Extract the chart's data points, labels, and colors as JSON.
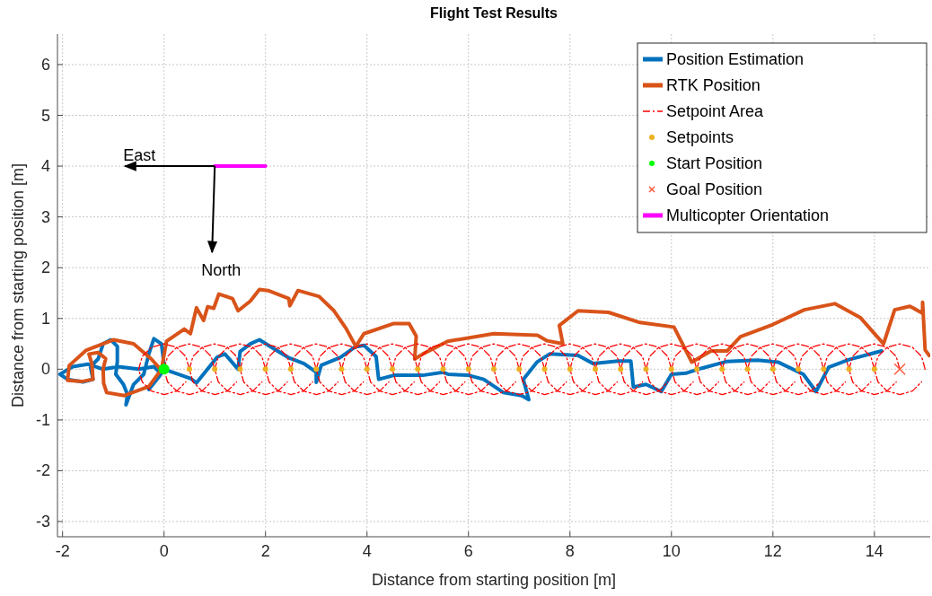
{
  "chart_data": {
    "type": "line",
    "title": "Flight Test Results",
    "xlabel": "Distance from starting position [m]",
    "ylabel": "Distance from starting position [m]",
    "xlim": [
      -2.1,
      15.1
    ],
    "ylim": [
      -3.3,
      6.6
    ],
    "xticks": [
      -2,
      0,
      2,
      4,
      6,
      8,
      10,
      12,
      14
    ],
    "yticks": [
      -3,
      -2,
      -1,
      0,
      1,
      2,
      3,
      4,
      5,
      6
    ],
    "grid": true,
    "legend": "top right",
    "annotations": [
      "East",
      "North"
    ],
    "series": [
      {
        "name": "Position Estimation",
        "color": "#0072bd",
        "x": [
          -0.1,
          -0.2,
          -0.5,
          -0.9,
          -1.2,
          -1.5,
          -1.8,
          -2.05,
          -1.9,
          -1.6,
          -1.4,
          -1.45,
          -1.3,
          -1.2,
          -1.05,
          -0.92,
          -0.92,
          -0.95,
          -0.8,
          -0.72,
          -0.75,
          -0.6,
          -0.4,
          -0.3,
          -0.2,
          -0.05,
          0,
          -0.15,
          -0.3,
          -0.1,
          0,
          0.52,
          0.64,
          1.05,
          1.2,
          1.46,
          1.5,
          1.7,
          1.88,
          2.17,
          2.45,
          2.76,
          3,
          3,
          3.1,
          3.47,
          3.77,
          3.94,
          4.18,
          4.23,
          4.53,
          5.1,
          5.5,
          5.6,
          6,
          6.3,
          6.69,
          7.05,
          7.19,
          7.08,
          7.35,
          7.6,
          8.16,
          8.46,
          8.95,
          9.2,
          9.25,
          9.5,
          9.8,
          10,
          10.28,
          10.6,
          11.08,
          11.7,
          12.1,
          12.6,
          12.85,
          13.1,
          13.5,
          14.14
        ],
        "values": [
          -0.05,
          0.05,
          0,
          0.05,
          0,
          0.1,
          0.05,
          -0.1,
          -0.2,
          -0.25,
          -0.2,
          0.05,
          0.2,
          0.5,
          0.58,
          0.45,
          0.15,
          -0.1,
          -0.3,
          -0.5,
          -0.7,
          -0.3,
          -0.1,
          0.3,
          0.6,
          0.5,
          0.1,
          -0.2,
          -0.4,
          -0.15,
          0,
          -0.18,
          -0.27,
          0.24,
          0.3,
          0,
          0.35,
          0.5,
          0.58,
          0.4,
          0.23,
          0.11,
          -0.06,
          -0.26,
          0.08,
          0.23,
          0.44,
          0.47,
          0.25,
          -0.2,
          -0.12,
          -0.12,
          -0.06,
          -0.1,
          -0.12,
          -0.2,
          -0.46,
          -0.52,
          -0.6,
          -0.2,
          0.14,
          0.3,
          0.27,
          0.11,
          0.16,
          0.16,
          -0.35,
          -0.3,
          -0.44,
          -0.1,
          -0.08,
          0.02,
          0.15,
          0.18,
          0.14,
          -0.1,
          -0.44,
          0.04,
          0.19,
          0.36
        ]
      },
      {
        "name": "RTK Position",
        "color": "#d95319",
        "x": [
          -0.07,
          -0.25,
          -0.6,
          -1,
          -1.54,
          -1.87,
          -1.9,
          -1.6,
          -1.4,
          -1.42,
          -1.48,
          -1.3,
          -1.15,
          -1.2,
          -1.19,
          -1.13,
          -0.78,
          -0.3,
          -0.05,
          0.05,
          0.4,
          0.52,
          0.64,
          0.78,
          0.86,
          0.98,
          1.08,
          1.35,
          1.46,
          1.7,
          1.88,
          2.05,
          2.46,
          2.48,
          2.64,
          3.06,
          3.35,
          3.59,
          3.78,
          3.94,
          4.53,
          4.83,
          4.97,
          4.94,
          5.1,
          5.59,
          6.5,
          7.36,
          7.55,
          7.86,
          7.79,
          8.16,
          8.76,
          9.38,
          10.05,
          10.4,
          10.78,
          11.1,
          11.36,
          12,
          12.62,
          13.22,
          13.72,
          14.18,
          14.4,
          14.7,
          14.95,
          14.95,
          15,
          15.08
        ],
        "values": [
          0,
          0.2,
          0.5,
          0.58,
          0.37,
          0.07,
          -0.22,
          -0.24,
          -0.2,
          0.1,
          0.3,
          0.33,
          0.21,
          0,
          -0.28,
          -0.46,
          -0.52,
          -0.34,
          0,
          0.55,
          0.79,
          0.7,
          1.21,
          0.96,
          1.23,
          1.2,
          1.48,
          1.39,
          1.15,
          1.34,
          1.57,
          1.55,
          1.39,
          1.25,
          1.55,
          1.43,
          1.15,
          0.8,
          0.45,
          0.7,
          0.9,
          0.9,
          0.65,
          0.2,
          0.3,
          0.55,
          0.7,
          0.67,
          0.56,
          0.5,
          0.86,
          1.15,
          1.12,
          0.92,
          0.83,
          0.14,
          0.36,
          0.36,
          0.64,
          0.88,
          1.17,
          1.29,
          1.02,
          0.5,
          1.17,
          1.24,
          1.1,
          1.32,
          0.38,
          0.27
        ]
      },
      {
        "name": "Setpoint Area",
        "color": "#ff0000",
        "line_style": "dashed",
        "x": [
          0.5,
          0.43,
          0.25,
          0,
          -0.25,
          -0.43,
          -0.5,
          -0.43,
          -0.25,
          0,
          0.25,
          0.43,
          null,
          1,
          0.93,
          0.75,
          0.5,
          0.25,
          0.07,
          0,
          0.07,
          0.25,
          0.5,
          0.75,
          0.93,
          null,
          1.5,
          1.43,
          1.25,
          1,
          0.75,
          0.57,
          0.5,
          0.57,
          0.75,
          1,
          1.25,
          1.43,
          null,
          2,
          1.93,
          1.75,
          1.5,
          1.25,
          1.07,
          1,
          1.07,
          1.25,
          1.5,
          1.75,
          1.93,
          null,
          2.5,
          2.43,
          2.25,
          2,
          1.75,
          1.57,
          1.5,
          1.57,
          1.75,
          2,
          2.25,
          2.43,
          null,
          3,
          2.93,
          2.75,
          2.5,
          2.25,
          2.07,
          2,
          2.07,
          2.25,
          2.5,
          2.75,
          2.93,
          null,
          3.5,
          3.43,
          3.25,
          3,
          2.75,
          2.57,
          2.5,
          2.57,
          2.75,
          3,
          3.25,
          3.43,
          null,
          4,
          3.93,
          3.75,
          3.5,
          3.25,
          3.07,
          3,
          3.07,
          3.25,
          3.5,
          3.75,
          3.93,
          null,
          4.5,
          4.43,
          4.25,
          4,
          3.75,
          3.57,
          3.5,
          3.57,
          3.75,
          4,
          4.25,
          4.43,
          null,
          5,
          4.93,
          4.75,
          4.5,
          4.25,
          4.07,
          4,
          4.07,
          4.25,
          4.5,
          4.75,
          4.93,
          null,
          5.5,
          5.43,
          5.25,
          5,
          4.75,
          4.57,
          4.5,
          4.57,
          4.75,
          5,
          5.25,
          5.43,
          null,
          6,
          5.93,
          5.75,
          5.5,
          5.25,
          5.07,
          5,
          5.07,
          5.25,
          5.5,
          5.75,
          5.93,
          null,
          6.5,
          6.43,
          6.25,
          6,
          5.75,
          5.57,
          5.5,
          5.57,
          5.75,
          6,
          6.25,
          6.43,
          null,
          7,
          6.93,
          6.75,
          6.5,
          6.25,
          6.07,
          6,
          6.07,
          6.25,
          6.5,
          6.75,
          6.93,
          null,
          7.5,
          7.43,
          7.25,
          7,
          6.75,
          6.57,
          6.5,
          6.57,
          6.75,
          7,
          7.25,
          7.43,
          null,
          8,
          7.93,
          7.75,
          7.5,
          7.25,
          7.07,
          7,
          7.07,
          7.25,
          7.5,
          7.75,
          7.93,
          null,
          8.5,
          8.43,
          8.25,
          8,
          7.75,
          7.57,
          7.5,
          7.57,
          7.75,
          8,
          8.25,
          8.43,
          null,
          9,
          8.93,
          8.75,
          8.5,
          8.25,
          8.07,
          8,
          8.07,
          8.25,
          8.5,
          8.75,
          8.93,
          null,
          9.5,
          9.43,
          9.25,
          9,
          8.75,
          8.57,
          8.5,
          8.57,
          8.75,
          9,
          9.25,
          9.43,
          null,
          10,
          9.93,
          9.75,
          9.5,
          9.25,
          9.07,
          9,
          9.07,
          9.25,
          9.5,
          9.75,
          9.93,
          null,
          10.5,
          10.43,
          10.25,
          10,
          9.75,
          9.57,
          9.5,
          9.57,
          9.75,
          10,
          10.25,
          10.43,
          null,
          11,
          10.93,
          10.75,
          10.5,
          10.25,
          10.07,
          10,
          10.07,
          10.25,
          10.5,
          10.75,
          10.93,
          null,
          11.5,
          11.43,
          11.25,
          11,
          10.75,
          10.57,
          10.5,
          10.57,
          10.75,
          11,
          11.25,
          11.43,
          null,
          12,
          11.93,
          11.75,
          11.5,
          11.25,
          11.07,
          11,
          11.07,
          11.25,
          11.5,
          11.75,
          11.93,
          null,
          12.5,
          12.43,
          12.25,
          12,
          11.75,
          11.57,
          11.5,
          11.57,
          11.75,
          12,
          12.25,
          12.43,
          null,
          13,
          12.93,
          12.75,
          12.5,
          12.25,
          12.07,
          12,
          12.07,
          12.25,
          12.5,
          12.75,
          12.93,
          null,
          13.5,
          13.43,
          13.25,
          13,
          12.75,
          12.57,
          12.5,
          12.57,
          12.75,
          13,
          13.25,
          13.43,
          null,
          14,
          13.93,
          13.75,
          13.5,
          13.25,
          13.07,
          13,
          13.07,
          13.25,
          13.5,
          13.75,
          13.93,
          null,
          14.5,
          14.43,
          14.25,
          14,
          13.75,
          13.57,
          13.5,
          13.57,
          13.75,
          14,
          14.25,
          14.43,
          null,
          15,
          14.93,
          14.75,
          14.5,
          14.25,
          14.07,
          14,
          14.07,
          14.25,
          14.5,
          14.75,
          14.93
        ],
        "values": [
          0,
          0.25,
          0.43,
          0.5,
          0.43,
          0.25,
          0,
          -0.25,
          -0.43,
          -0.5,
          -0.43,
          -0.25,
          null,
          0,
          0.25,
          0.43,
          0.5,
          0.43,
          0.25,
          0,
          -0.25,
          -0.43,
          -0.5,
          -0.43,
          -0.25,
          null,
          0,
          0.25,
          0.43,
          0.5,
          0.43,
          0.25,
          0,
          -0.25,
          -0.43,
          -0.5,
          -0.43,
          -0.25,
          null,
          0,
          0.25,
          0.43,
          0.5,
          0.43,
          0.25,
          0,
          -0.25,
          -0.43,
          -0.5,
          -0.43,
          -0.25,
          null,
          0,
          0.25,
          0.43,
          0.5,
          0.43,
          0.25,
          0,
          -0.25,
          -0.43,
          -0.5,
          -0.43,
          -0.25,
          null,
          0,
          0.25,
          0.43,
          0.5,
          0.43,
          0.25,
          0,
          -0.25,
          -0.43,
          -0.5,
          -0.43,
          -0.25,
          null,
          0,
          0.25,
          0.43,
          0.5,
          0.43,
          0.25,
          0,
          -0.25,
          -0.43,
          -0.5,
          -0.43,
          -0.25,
          null,
          0,
          0.25,
          0.43,
          0.5,
          0.43,
          0.25,
          0,
          -0.25,
          -0.43,
          -0.5,
          -0.43,
          -0.25,
          null,
          0,
          0.25,
          0.43,
          0.5,
          0.43,
          0.25,
          0,
          -0.25,
          -0.43,
          -0.5,
          -0.43,
          -0.25,
          null,
          0,
          0.25,
          0.43,
          0.5,
          0.43,
          0.25,
          0,
          -0.25,
          -0.43,
          -0.5,
          -0.43,
          -0.25,
          null,
          0,
          0.25,
          0.43,
          0.5,
          0.43,
          0.25,
          0,
          -0.25,
          -0.43,
          -0.5,
          -0.43,
          -0.25,
          null,
          0,
          0.25,
          0.43,
          0.5,
          0.43,
          0.25,
          0,
          -0.25,
          -0.43,
          -0.5,
          -0.43,
          -0.25,
          null,
          0,
          0.25,
          0.43,
          0.5,
          0.43,
          0.25,
          0,
          -0.25,
          -0.43,
          -0.5,
          -0.43,
          -0.25,
          null,
          0,
          0.25,
          0.43,
          0.5,
          0.43,
          0.25,
          0,
          -0.25,
          -0.43,
          -0.5,
          -0.43,
          -0.25,
          null,
          0,
          0.25,
          0.43,
          0.5,
          0.43,
          0.25,
          0,
          -0.25,
          -0.43,
          -0.5,
          -0.43,
          -0.25,
          null,
          0,
          0.25,
          0.43,
          0.5,
          0.43,
          0.25,
          0,
          -0.25,
          -0.43,
          -0.5,
          -0.43,
          -0.25,
          null,
          0,
          0.25,
          0.43,
          0.5,
          0.43,
          0.25,
          0,
          -0.25,
          -0.43,
          -0.5,
          -0.43,
          -0.25,
          null,
          0,
          0.25,
          0.43,
          0.5,
          0.43,
          0.25,
          0,
          -0.25,
          -0.43,
          -0.5,
          -0.43,
          -0.25,
          null,
          0,
          0.25,
          0.43,
          0.5,
          0.43,
          0.25,
          0,
          -0.25,
          -0.43,
          -0.5,
          -0.43,
          -0.25,
          null,
          0,
          0.25,
          0.43,
          0.5,
          0.43,
          0.25,
          0,
          -0.25,
          -0.43,
          -0.5,
          -0.43,
          -0.25,
          null,
          0,
          0.25,
          0.43,
          0.5,
          0.43,
          0.25,
          0,
          -0.25,
          -0.43,
          -0.5,
          -0.43,
          -0.25,
          null,
          0,
          0.25,
          0.43,
          0.5,
          0.43,
          0.25,
          0,
          -0.25,
          -0.43,
          -0.5,
          -0.43,
          -0.25,
          null,
          0,
          0.25,
          0.43,
          0.5,
          0.43,
          0.25,
          0,
          -0.25,
          -0.43,
          -0.5,
          -0.43,
          -0.25,
          null,
          0,
          0.25,
          0.43,
          0.5,
          0.43,
          0.25,
          0,
          -0.25,
          -0.43,
          -0.5,
          -0.43,
          -0.25,
          null,
          0,
          0.25,
          0.43,
          0.5,
          0.43,
          0.25,
          0,
          -0.25,
          -0.43,
          -0.5,
          -0.43,
          -0.25,
          null,
          0,
          0.25,
          0.43,
          0.5,
          0.43,
          0.25,
          0,
          -0.25,
          -0.43,
          -0.5,
          -0.43,
          -0.25,
          null,
          0,
          0.25,
          0.43,
          0.5,
          0.43,
          0.25,
          0,
          -0.25,
          -0.43,
          -0.5,
          -0.43,
          -0.25,
          null,
          0,
          0.25,
          0.43,
          0.5,
          0.43,
          0.25,
          0,
          -0.25,
          -0.43,
          -0.5,
          -0.43,
          -0.25,
          null,
          0,
          0.25,
          0.43,
          0.5,
          0.43,
          0.25,
          0,
          -0.25,
          -0.43,
          -0.5,
          -0.43,
          -0.25,
          null,
          0,
          0.25,
          0.43,
          0.5,
          0.43,
          0.25,
          0,
          -0.25,
          -0.43,
          -0.5,
          -0.43,
          -0.25
        ]
      },
      {
        "name": "Setpoints",
        "color": "#edb120",
        "type": "scatter",
        "marker": "circle",
        "x": [
          0.5,
          1,
          1.5,
          2,
          2.5,
          3,
          3.5,
          4,
          4.5,
          5,
          5.5,
          6,
          6.5,
          7,
          7.5,
          8,
          8.5,
          9,
          9.5,
          10,
          10.5,
          11,
          11.5,
          12,
          12.5,
          13,
          13.5,
          14
        ],
        "values": [
          0,
          0,
          0,
          0,
          0,
          0,
          0,
          0,
          0,
          0,
          0,
          0,
          0,
          0,
          0,
          0,
          0,
          0,
          0,
          0,
          0,
          0,
          0,
          0,
          0,
          0,
          0,
          0
        ]
      },
      {
        "name": "Start Position",
        "color": "#00ff00",
        "type": "scatter",
        "marker": "circle",
        "x": [
          0
        ],
        "values": [
          0
        ]
      },
      {
        "name": "Goal Position",
        "color": "#ff5a3c",
        "type": "scatter",
        "marker": "cross",
        "x": [
          14.5
        ],
        "values": [
          0
        ]
      },
      {
        "name": "Multicopter Orientation",
        "color": "#ff00ff",
        "x": [
          1,
          2
        ],
        "values": [
          4,
          4
        ]
      }
    ]
  }
}
